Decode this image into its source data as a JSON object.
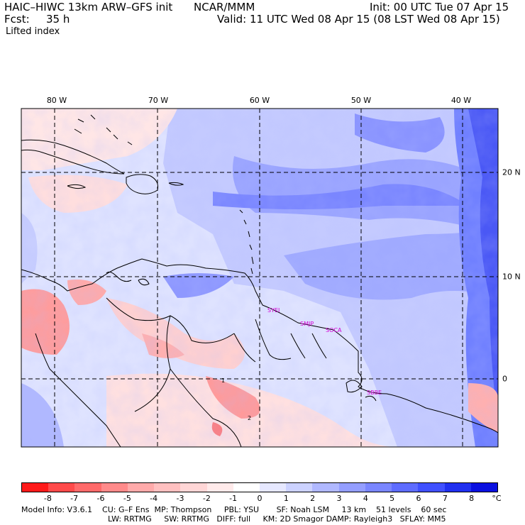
{
  "header": {
    "model_title": "HAIC–HIWC 13km ARW–GFS init",
    "org": "NCAR/MMM",
    "init": "Init: 00 UTC Tue 07 Apr 15",
    "fcst_label": "Fcst:",
    "fcst_hours": "35 h",
    "valid": "Valid: 11 UTC Wed 08 Apr 15 (08 LST Wed 08 Apr 15)",
    "field": "Lifted index"
  },
  "map": {
    "lon_labels": [
      "80 W",
      "70 W",
      "60 W",
      "50 W",
      "40 W"
    ],
    "lat_labels": [
      "20 N",
      "10 N",
      "0"
    ],
    "stations": [
      "SYEI",
      "SMJP",
      "SOCA",
      "SBBE"
    ],
    "contour_labels": [
      "1",
      "2"
    ],
    "colors": {
      "station": "#d400d4",
      "coast": "#000000",
      "grid": "#000000"
    }
  },
  "colorbar": {
    "tick_labels": [
      "-8",
      "-7",
      "-6",
      "-5",
      "-4",
      "-3",
      "-2",
      "-1",
      "0",
      "1",
      "2",
      "3",
      "4",
      "5",
      "6",
      "7",
      "8"
    ],
    "unit": "°C",
    "colors": [
      "#ff1a1a",
      "#ff4a4a",
      "#ff6a6a",
      "#ff8a8a",
      "#ffaaaa",
      "#ffc0c0",
      "#ffd6d6",
      "#ffeaea",
      "#ffffff",
      "#e6e8ff",
      "#ccd2ff",
      "#b0b8ff",
      "#949eff",
      "#7a86ff",
      "#5e6cff",
      "#4050ff",
      "#2030f0",
      "#0a10e0"
    ]
  },
  "footer": {
    "line1": "Model Info: V3.6.1    CU: G–F Ens  MP: Thompson     PBL: YSU       SF: Noah LSM     13 km    51 levels    60 sec",
    "line2": "LW: RRTMG     SW: RRTMG   DIFF: full     KM: 2D Smagor DAMP: Rayleigh3   SFLAY: MM5"
  }
}
